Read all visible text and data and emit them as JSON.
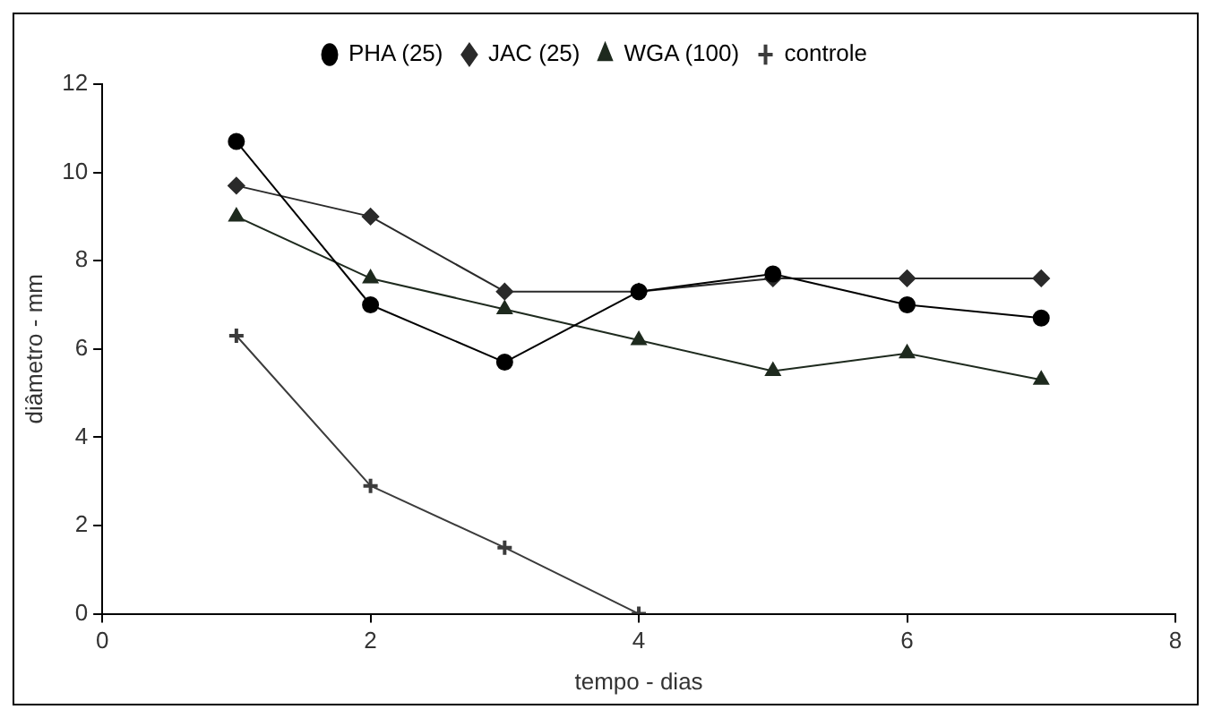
{
  "chart_data": {
    "type": "line",
    "xlabel": "tempo - dias",
    "ylabel": "diâmetro - mm",
    "x": [
      1,
      2,
      3,
      4,
      5,
      6,
      7
    ],
    "series": [
      {
        "name": "PHA (25)",
        "color": "#000000",
        "marker": "circle",
        "values": [
          10.7,
          7.0,
          5.7,
          7.3,
          7.7,
          7.0,
          6.7
        ]
      },
      {
        "name": "JAC (25)",
        "color": "#2a2a2a",
        "marker": "diamond",
        "values": [
          9.7,
          9.0,
          7.3,
          7.3,
          7.6,
          7.6,
          7.6
        ]
      },
      {
        "name": "WGA (100)",
        "color": "#1e2a1e",
        "marker": "triangle",
        "values": [
          9.0,
          7.6,
          6.9,
          6.2,
          5.5,
          5.9,
          5.3
        ]
      },
      {
        "name": "controle",
        "color": "#3c3c3c",
        "marker": "cross",
        "values": [
          6.3,
          2.9,
          1.5,
          0,
          null,
          null,
          null
        ]
      }
    ],
    "xlim": [
      0,
      8
    ],
    "xticks": [
      0,
      2,
      4,
      6,
      8
    ],
    "ylim": [
      0,
      12
    ],
    "yticks": [
      0,
      2,
      4,
      6,
      8,
      10,
      12
    ],
    "grid": false,
    "legend": "top"
  }
}
